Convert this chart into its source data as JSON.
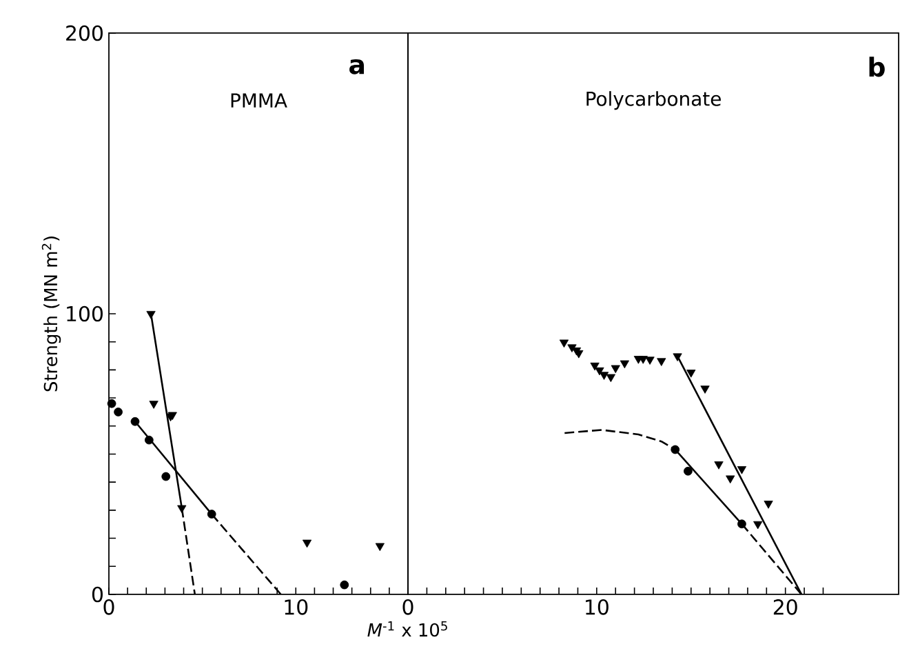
{
  "chart_data": [
    {
      "type": "scatter",
      "title": "PMMA",
      "annotations": [
        "a"
      ],
      "ylabel": "Strength (MN m$^{2}$)",
      "xlim": [
        0,
        16
      ],
      "ylim": [
        0,
        200
      ],
      "xticks": [
        0,
        {
          "value": 1,
          "label": null
        },
        {
          "value": 2,
          "label": null
        },
        {
          "value": 3,
          "label": null
        },
        {
          "value": 4,
          "label": null
        },
        {
          "value": 5,
          "label": null
        },
        {
          "value": 6,
          "label": null
        },
        {
          "value": 7,
          "label": null
        },
        {
          "value": 8,
          "label": null
        },
        {
          "value": 9,
          "label": null
        },
        10,
        {
          "value": 11,
          "label": null
        },
        {
          "value": 12,
          "label": null
        },
        {
          "value": 13,
          "label": null
        },
        {
          "value": 14,
          "label": null
        },
        {
          "value": 15,
          "label": null
        }
      ],
      "yticks": [
        0,
        {
          "value": 10,
          "label": null
        },
        {
          "value": 20,
          "label": null
        },
        {
          "value": 30,
          "label": null
        },
        {
          "value": 40,
          "label": null
        },
        {
          "value": 50,
          "label": null
        },
        {
          "value": 60,
          "label": null
        },
        {
          "value": 70,
          "label": null
        },
        {
          "value": 80,
          "label": null
        },
        {
          "value": 90,
          "label": null
        },
        100,
        200
      ],
      "grid": false,
      "series": [
        {
          "marker": "circle",
          "color": "#000000",
          "x": [
            0.15,
            0.5,
            1.4,
            2.15,
            3.05,
            5.5,
            12.6
          ],
          "values": [
            68,
            65,
            61.6,
            55,
            42,
            28.6,
            3.4
          ]
        },
        {
          "marker": "triangle",
          "color": "#000000",
          "x": [
            2.25,
            2.4,
            3.3,
            3.4,
            3.9,
            10.6,
            14.5
          ],
          "values": [
            100,
            68,
            63.5,
            64,
            30.8,
            18.5,
            17.3
          ]
        },
        {
          "type": "line",
          "line_style": "solid",
          "color": "#000000",
          "x": [
            2.25,
            3.9
          ],
          "values": [
            100,
            30.8
          ]
        },
        {
          "type": "line",
          "line_style": "dashed",
          "color": "#000000",
          "x": [
            3.9,
            4.6
          ],
          "values": [
            30.8,
            0
          ]
        },
        {
          "type": "line",
          "line_style": "solid",
          "color": "#000000",
          "x": [
            1.4,
            5.5
          ],
          "values": [
            61.6,
            28.6
          ]
        },
        {
          "type": "line",
          "line_style": "dashed",
          "color": "#000000",
          "x": [
            5.5,
            9.2
          ],
          "values": [
            28.6,
            0
          ]
        }
      ]
    },
    {
      "type": "scatter",
      "title": "Polycarbonate",
      "annotations": [
        "b"
      ],
      "xlabel": "*M*$^{-1}$ x 10$^{5}$",
      "xlim": [
        0,
        26
      ],
      "ylim": [
        0,
        200
      ],
      "tick_labels": "x",
      "xticks": [
        0,
        {
          "value": 1,
          "label": null
        },
        {
          "value": 2,
          "label": null
        },
        {
          "value": 3,
          "label": null
        },
        {
          "value": 4,
          "label": null
        },
        {
          "value": 5,
          "label": null
        },
        {
          "value": 6,
          "label": null
        },
        {
          "value": 7,
          "label": null
        },
        {
          "value": 8,
          "label": null
        },
        {
          "value": 9,
          "label": null
        },
        10,
        {
          "value": 11,
          "label": null
        },
        {
          "value": 12,
          "label": null
        },
        {
          "value": 13,
          "label": null
        },
        {
          "value": 14,
          "label": null
        },
        {
          "value": 15,
          "label": null
        },
        {
          "value": 16,
          "label": null
        },
        {
          "value": 17,
          "label": null
        },
        {
          "value": 18,
          "label": null
        },
        {
          "value": 19,
          "label": null
        },
        20,
        {
          "value": 21,
          "label": null
        },
        {
          "value": 22,
          "label": null
        }
      ],
      "yticks": [
        0,
        100,
        200
      ],
      "grid": false,
      "series": [
        {
          "marker": "circle",
          "color": "#000000",
          "x": [
            14.16,
            14.84,
            17.69
          ],
          "values": [
            51.6,
            43.9,
            25.1
          ]
        },
        {
          "marker": "triangle",
          "color": "#000000",
          "x": [
            8.27,
            8.69,
            8.93,
            9.05,
            9.9,
            10.15,
            10.39,
            10.75,
            11.0,
            11.48,
            12.21,
            12.46,
            12.82,
            13.43,
            14.28,
            15.0,
            15.74,
            16.47,
            17.08,
            17.69,
            18.54,
            19.1
          ],
          "values": [
            89.8,
            88.1,
            87.0,
            86.0,
            81.6,
            79.9,
            78.3,
            77.5,
            80.7,
            82.4,
            84.0,
            84.0,
            83.7,
            83.2,
            84.9,
            79.1,
            73.4,
            46.4,
            41.4,
            44.7,
            25.1,
            32.4
          ]
        },
        {
          "type": "line",
          "line_style": "dashed",
          "color": "#000000",
          "x": [
            8.3,
            10.27,
            12.21,
            13.43,
            14.16
          ],
          "values": [
            57.5,
            58.6,
            57.0,
            54.5,
            51.6
          ]
        },
        {
          "type": "line",
          "line_style": "solid",
          "color": "#000000",
          "x": [
            14.16,
            17.69
          ],
          "values": [
            51.6,
            25.1
          ]
        },
        {
          "type": "line",
          "line_style": "dashed",
          "color": "#000000",
          "x": [
            17.69,
            20.85
          ],
          "values": [
            25.1,
            0
          ]
        },
        {
          "type": "line",
          "line_style": "solid",
          "color": "#000000",
          "x": [
            14.28,
            20.85
          ],
          "values": [
            84.9,
            0
          ]
        }
      ]
    }
  ]
}
